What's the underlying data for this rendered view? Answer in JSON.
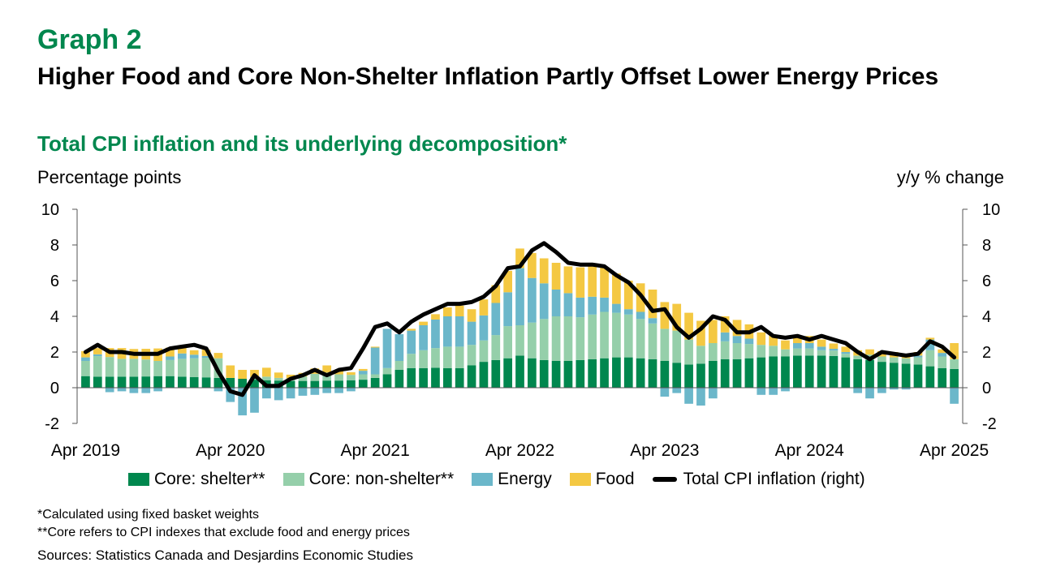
{
  "header": {
    "graph_label": "Graph 2",
    "title": "Higher Food and Core Non-Shelter Inflation Partly Offset Lower Energy Prices",
    "subtitle": "Total CPI inflation and its underlying decomposition*"
  },
  "footer": {
    "note1": "*Calculated using fixed basket weights",
    "note2": "**Core refers to CPI indexes that exclude food and energy prices",
    "source": "Sources: Statistics Canada and Desjardins Economic Studies"
  },
  "colors": {
    "shelter": "#00874E",
    "non_shelter": "#95CFAA",
    "energy": "#6BB7CA",
    "food": "#F4C842",
    "total": "#000000",
    "title_green": "#00874E"
  },
  "chart_data": {
    "type": "bar",
    "stacked": true,
    "ylabel_left": "Percentage points",
    "ylabel_right": "y/y % change",
    "ylim": [
      -2,
      10
    ],
    "yticks": [
      -2,
      0,
      2,
      4,
      6,
      8,
      10
    ],
    "grid": false,
    "legend_position": "bottom",
    "x_tick_labels": [
      "Apr 2019",
      "Apr 2020",
      "Apr 2021",
      "Apr 2022",
      "Apr 2023",
      "Apr 2024",
      "Apr 2025"
    ],
    "x_tick_index": [
      0,
      12,
      24,
      36,
      48,
      60,
      72
    ],
    "categories": [
      "Apr 2019",
      "May 2019",
      "Jun 2019",
      "Jul 2019",
      "Aug 2019",
      "Sep 2019",
      "Oct 2019",
      "Nov 2019",
      "Dec 2019",
      "Jan 2020",
      "Feb 2020",
      "Mar 2020",
      "Apr 2020",
      "May 2020",
      "Jun 2020",
      "Jul 2020",
      "Aug 2020",
      "Sep 2020",
      "Oct 2020",
      "Nov 2020",
      "Dec 2020",
      "Jan 2021",
      "Feb 2021",
      "Mar 2021",
      "Apr 2021",
      "May 2021",
      "Jun 2021",
      "Jul 2021",
      "Aug 2021",
      "Sep 2021",
      "Oct 2021",
      "Nov 2021",
      "Dec 2021",
      "Jan 2022",
      "Feb 2022",
      "Mar 2022",
      "Apr 2022",
      "May 2022",
      "Jun 2022",
      "Jul 2022",
      "Aug 2022",
      "Sep 2022",
      "Oct 2022",
      "Nov 2022",
      "Dec 2022",
      "Jan 2023",
      "Feb 2023",
      "Mar 2023",
      "Apr 2023",
      "May 2023",
      "Jun 2023",
      "Jul 2023",
      "Aug 2023",
      "Sep 2023",
      "Oct 2023",
      "Nov 2023",
      "Dec 2023",
      "Jan 2024",
      "Feb 2024",
      "Mar 2024",
      "Apr 2024",
      "May 2024",
      "Jun 2024",
      "Jul 2024",
      "Aug 2024",
      "Sep 2024",
      "Oct 2024",
      "Nov 2024",
      "Dec 2024",
      "Jan 2025",
      "Feb 2025",
      "Mar 2025",
      "Apr 2025"
    ],
    "series": [
      {
        "name": "Core: shelter**",
        "color_key": "shelter",
        "kind": "bar",
        "axis": "left",
        "values": [
          0.65,
          0.62,
          0.62,
          0.62,
          0.62,
          0.63,
          0.65,
          0.65,
          0.62,
          0.6,
          0.58,
          0.55,
          0.55,
          0.5,
          0.45,
          0.42,
          0.4,
          0.38,
          0.38,
          0.38,
          0.4,
          0.4,
          0.42,
          0.45,
          0.55,
          0.75,
          1.0,
          1.1,
          1.1,
          1.12,
          1.1,
          1.1,
          1.25,
          1.45,
          1.55,
          1.65,
          1.8,
          1.65,
          1.55,
          1.5,
          1.5,
          1.55,
          1.6,
          1.65,
          1.7,
          1.7,
          1.65,
          1.6,
          1.5,
          1.4,
          1.3,
          1.35,
          1.5,
          1.6,
          1.6,
          1.65,
          1.7,
          1.75,
          1.75,
          1.8,
          1.8,
          1.8,
          1.78,
          1.7,
          1.6,
          1.55,
          1.45,
          1.4,
          1.35,
          1.3,
          1.2,
          1.1,
          1.05
        ]
      },
      {
        "name": "Core: non-shelter**",
        "color_key": "non_shelter",
        "kind": "bar",
        "axis": "left",
        "values": [
          0.85,
          1.15,
          1.1,
          1.0,
          1.0,
          0.95,
          0.85,
          0.9,
          1.0,
          1.05,
          1.1,
          1.1,
          0.0,
          0.0,
          0.15,
          0.2,
          0.15,
          0.15,
          0.25,
          0.4,
          0.45,
          0.35,
          0.3,
          0.3,
          0.2,
          0.35,
          0.5,
          0.8,
          1.0,
          1.1,
          1.2,
          1.2,
          1.15,
          1.2,
          1.4,
          1.8,
          1.7,
          2.0,
          2.3,
          2.5,
          2.5,
          2.4,
          2.5,
          2.6,
          2.5,
          2.4,
          2.2,
          2.0,
          1.8,
          1.8,
          1.4,
          1.0,
          1.0,
          1.0,
          0.9,
          0.8,
          0.7,
          0.6,
          0.4,
          0.4,
          0.4,
          0.3,
          0.3,
          0.2,
          0.2,
          0.3,
          0.3,
          0.3,
          0.3,
          0.4,
          0.9,
          0.65,
          0.55
        ]
      },
      {
        "name": "Energy",
        "color_key": "energy",
        "kind": "bar",
        "axis": "left",
        "values": [
          0.2,
          0.1,
          -0.25,
          -0.2,
          -0.3,
          -0.3,
          -0.2,
          0.2,
          0.3,
          0.2,
          0.1,
          -0.2,
          -0.8,
          -1.55,
          -1.4,
          -0.6,
          -0.7,
          -0.6,
          -0.45,
          -0.4,
          -0.3,
          -0.3,
          -0.2,
          0.2,
          1.5,
          2.2,
          1.5,
          1.3,
          1.4,
          1.6,
          1.7,
          1.7,
          1.3,
          1.4,
          1.8,
          1.9,
          3.2,
          2.5,
          2.0,
          1.5,
          1.3,
          1.1,
          1.0,
          0.8,
          0.5,
          0.3,
          0.4,
          0.3,
          -0.5,
          -0.3,
          -0.9,
          -1.0,
          -0.6,
          0.5,
          0.4,
          0.3,
          -0.4,
          -0.4,
          -0.2,
          0.3,
          0.3,
          0.2,
          0.1,
          0.1,
          -0.3,
          -0.6,
          -0.3,
          -0.1,
          -0.1,
          0.1,
          0.6,
          0.2,
          -0.9
        ]
      },
      {
        "name": "Food",
        "color_key": "food",
        "kind": "bar",
        "axis": "left",
        "values": [
          0.35,
          0.35,
          0.5,
          0.6,
          0.55,
          0.6,
          0.7,
          0.5,
          0.4,
          0.25,
          0.35,
          0.3,
          0.7,
          0.5,
          0.4,
          0.5,
          0.3,
          0.2,
          0.2,
          0.3,
          0.4,
          0.2,
          0.15,
          0.1,
          0.05,
          0.0,
          0.0,
          0.1,
          0.2,
          0.3,
          0.5,
          0.6,
          0.7,
          0.9,
          1.0,
          1.2,
          1.1,
          1.4,
          1.4,
          1.5,
          1.5,
          1.7,
          1.7,
          1.7,
          1.7,
          1.6,
          1.6,
          1.6,
          1.5,
          1.5,
          1.5,
          1.4,
          1.3,
          0.9,
          0.9,
          0.8,
          0.7,
          0.6,
          0.5,
          0.4,
          0.4,
          0.4,
          0.3,
          0.3,
          0.3,
          0.3,
          0.3,
          0.3,
          0.2,
          0.2,
          0.1,
          0.2,
          0.9
        ]
      },
      {
        "name": "Total CPI inflation (right)",
        "color_key": "total",
        "kind": "line",
        "axis": "right",
        "values": [
          2.0,
          2.4,
          2.0,
          2.0,
          1.9,
          1.9,
          1.9,
          2.2,
          2.3,
          2.4,
          2.2,
          0.9,
          -0.2,
          -0.4,
          0.7,
          0.1,
          0.1,
          0.5,
          0.7,
          1.0,
          0.7,
          1.0,
          1.1,
          2.2,
          3.4,
          3.6,
          3.1,
          3.7,
          4.1,
          4.4,
          4.7,
          4.7,
          4.8,
          5.1,
          5.7,
          6.7,
          6.8,
          7.7,
          8.1,
          7.6,
          7.0,
          6.9,
          6.9,
          6.8,
          6.3,
          5.9,
          5.2,
          4.3,
          4.4,
          3.4,
          2.8,
          3.3,
          4.0,
          3.8,
          3.1,
          3.1,
          3.4,
          2.9,
          2.8,
          2.9,
          2.7,
          2.9,
          2.7,
          2.5,
          2.0,
          1.6,
          2.0,
          1.9,
          1.8,
          1.9,
          2.6,
          2.3,
          1.7
        ]
      }
    ]
  }
}
